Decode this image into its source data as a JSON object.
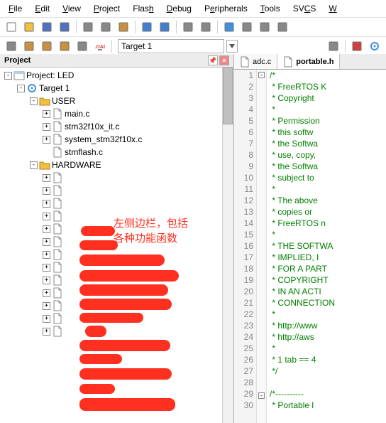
{
  "menu": [
    "File",
    "Edit",
    "View",
    "Project",
    "Flash",
    "Debug",
    "Peripherals",
    "Tools",
    "SVCS",
    "W"
  ],
  "menu_underline_idx": [
    0,
    0,
    0,
    0,
    4,
    0,
    1,
    0,
    2,
    0
  ],
  "toolbar1_icons": [
    "new",
    "open",
    "save",
    "save-all",
    "|",
    "cut",
    "copy",
    "paste",
    "|",
    "undo",
    "redo",
    "|",
    "back",
    "fwd",
    "|",
    "bookmark",
    "bookmark-prev",
    "bookmark-next",
    "bookmark-clear"
  ],
  "toolbar2_icons": [
    "translate",
    "build",
    "build-all",
    "batch",
    "stop",
    "download",
    "|"
  ],
  "target_name": "Target 1",
  "toolbar2_right": [
    "wand",
    "|",
    "people",
    "target"
  ],
  "project_title": "Project",
  "tree": [
    {
      "depth": 0,
      "toggle": "-",
      "icon": "proj",
      "label": "Project: LED"
    },
    {
      "depth": 1,
      "toggle": "-",
      "icon": "target",
      "label": "Target 1"
    },
    {
      "depth": 2,
      "toggle": "-",
      "icon": "folder",
      "label": "USER"
    },
    {
      "depth": 3,
      "toggle": "+",
      "icon": "file",
      "label": "main.c"
    },
    {
      "depth": 3,
      "toggle": "+",
      "icon": "file",
      "label": "stm32f10x_it.c"
    },
    {
      "depth": 3,
      "toggle": "+",
      "icon": "file",
      "label": "system_stm32f10x.c"
    },
    {
      "depth": 3,
      "toggle": " ",
      "icon": "file",
      "label": "stmflash.c"
    },
    {
      "depth": 2,
      "toggle": "-",
      "icon": "folder",
      "label": "HARDWARE"
    },
    {
      "depth": 3,
      "toggle": "+",
      "icon": "file",
      "label": ""
    },
    {
      "depth": 3,
      "toggle": "+",
      "icon": "file",
      "label": ""
    },
    {
      "depth": 3,
      "toggle": "+",
      "icon": "file",
      "label": ""
    },
    {
      "depth": 3,
      "toggle": "+",
      "icon": "file",
      "label": ""
    },
    {
      "depth": 3,
      "toggle": "+",
      "icon": "file",
      "label": ""
    },
    {
      "depth": 3,
      "toggle": "+",
      "icon": "file",
      "label": ""
    },
    {
      "depth": 3,
      "toggle": "+",
      "icon": "file",
      "label": ""
    },
    {
      "depth": 3,
      "toggle": "+",
      "icon": "file",
      "label": ""
    },
    {
      "depth": 3,
      "toggle": "+",
      "icon": "file",
      "label": ""
    },
    {
      "depth": 3,
      "toggle": "+",
      "icon": "file",
      "label": ""
    },
    {
      "depth": 3,
      "toggle": "+",
      "icon": "file",
      "label": ""
    },
    {
      "depth": 3,
      "toggle": "+",
      "icon": "file",
      "label": ""
    },
    {
      "depth": 3,
      "toggle": "+",
      "icon": "file",
      "label": ""
    }
  ],
  "tabs": [
    {
      "label": "adc.c",
      "active": false
    },
    {
      "label": "portable.h",
      "active": true
    }
  ],
  "code": {
    "lines": [
      "/*",
      " * FreeRTOS K",
      " * Copyright",
      " *",
      " * Permission",
      " * this softw",
      " * the Softwa",
      " * use, copy,",
      " * the Softwa",
      " * subject to",
      " *",
      " * The above ",
      " * copies or ",
      " * FreeRTOS n",
      " *",
      " * THE SOFTWA",
      " * IMPLIED, I",
      " * FOR A PART",
      " * COPYRIGHT ",
      " * IN AN ACTI",
      " * CONNECTION",
      " *",
      " * http://www",
      " * http://aws",
      " *",
      " * 1 tab == 4",
      " */",
      "",
      "/*----------",
      " * Portable l"
    ],
    "first_line": 1
  },
  "annotation": {
    "line1": "左侧边栏，包括",
    "line2": "各种功能函数"
  },
  "colors": {
    "comment": "#008000",
    "annotation": "#ff3020"
  }
}
